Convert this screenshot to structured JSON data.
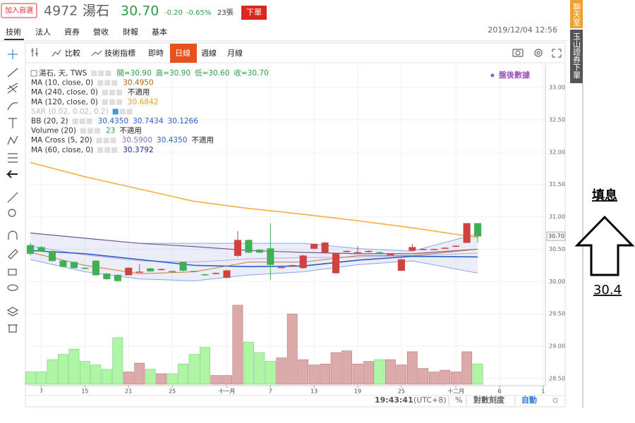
{
  "watch_button": "加入自選",
  "code": "4972",
  "name": "湯石",
  "price": "30.70",
  "change": "-0.20",
  "change_pct": "-0.65%",
  "volume": "23張",
  "order_button": "下單",
  "nav": [
    "技術",
    "法人",
    "資券",
    "營收",
    "財報",
    "基本"
  ],
  "datetime": "2019/12/04 12:56",
  "toolbar": [
    "比較",
    "技術指標",
    "即時",
    "日線",
    "週線",
    "月線"
  ],
  "legend": [
    {
      "name": "湯石, 天, TWS",
      "values": [
        "開=30.90",
        "高=30.90",
        "低=30.60",
        "收=30.70"
      ],
      "colors": [
        "#2e9e45",
        "#2e9e45",
        "#2e9e45",
        "#2e9e45"
      ]
    },
    {
      "name": "MA (10, close, 0)",
      "values": [
        "30.4950"
      ],
      "colors": [
        "#b5651d"
      ]
    },
    {
      "name": "MA (240, close, 0)",
      "values": [
        "不適用"
      ],
      "colors": [
        "#222222"
      ]
    },
    {
      "name": "MA (120, close, 0)",
      "values": [
        "30.6842"
      ],
      "colors": [
        "#e8a317"
      ]
    },
    {
      "name": "SAR (0.02, 0.02, 0.2)",
      "values": [],
      "colors": [],
      "faded": true
    },
    {
      "name": "BB (20, 2)",
      "values": [
        "30.4350",
        "30.7434",
        "30.1266"
      ],
      "colors": [
        "#2a62c9",
        "#2a62c9",
        "#2a62c9"
      ]
    },
    {
      "name": "Volume (20)",
      "values": [
        "23",
        "不適用"
      ],
      "colors": [
        "#2e9e45",
        "#222222"
      ]
    },
    {
      "name": "MA Cross (5, 20)",
      "values": [
        "30.5900",
        "30.4350",
        "不適用"
      ],
      "colors": [
        "#8a6fbf",
        "#2a62c9",
        "#222222"
      ]
    },
    {
      "name": "MA (60, close, 0)",
      "values": [
        "30.3792"
      ],
      "colors": [
        "#1a2f8a"
      ]
    }
  ],
  "after_hours": "盤後數據",
  "status": {
    "time": "19:43:41",
    "tz": "(UTC+8)",
    "pct": "%",
    "log": "對數刻度",
    "auto": "自動"
  },
  "sidebar": [
    "聊天室",
    "玉山證券下單"
  ],
  "annotation": {
    "label": "填息",
    "value": "30.4"
  },
  "chart_data": {
    "type": "candlestick",
    "grid": true,
    "up_color": "#d0423c",
    "down_color": "#3fae55",
    "volume_up_color": "#dcaaaa",
    "volume_down_color": "#aef5a4",
    "xlim": [
      -0.2,
      47.2
    ],
    "xticks": [
      {
        "value": 1,
        "label": "7"
      },
      {
        "value": 5,
        "label": "15"
      },
      {
        "value": 9,
        "label": "21"
      },
      {
        "value": 13,
        "label": "25"
      },
      {
        "value": 18,
        "label": "十一月"
      },
      {
        "value": 22,
        "label": "7"
      },
      {
        "value": 26,
        "label": "13"
      },
      {
        "value": 30,
        "label": "19"
      },
      {
        "value": 34,
        "label": "25"
      },
      {
        "value": 39,
        "label": "十二月"
      },
      {
        "value": 43,
        "label": "6"
      },
      {
        "value": 47,
        "label": "1"
      }
    ],
    "ylim": [
      28.39,
      33.35
    ],
    "yticks": [
      {
        "value": 33,
        "label": "33.00"
      },
      {
        "value": 32.5,
        "label": "32.50"
      },
      {
        "value": 32,
        "label": "32.00"
      },
      {
        "value": 31.5,
        "label": "31.50"
      },
      {
        "value": 31,
        "label": "31.00"
      },
      {
        "value": 30.5,
        "label": "30.50"
      },
      {
        "value": 30,
        "label": "30.00"
      },
      {
        "value": 29.5,
        "label": "29.50"
      },
      {
        "value": 29,
        "label": "29.00"
      },
      {
        "value": 28.5,
        "label": "28.50"
      }
    ],
    "last_label": "30.70",
    "last_value": 30.7,
    "vlim": [
      0,
      130
    ],
    "open": [
      30.56,
      30.53,
      30.47,
      30.32,
      30.3,
      30.21,
      30.32,
      30.12,
      30.1,
      30.1,
      30.14,
      30.2,
      30.18,
      30.16,
      30.3,
      30.16,
      30.11,
      30.12,
      30.06,
      30.4,
      30.64,
      30.49,
      30.51,
      30.22,
      30.24,
      30.21,
      30.51,
      30.45,
      30.13,
      30.46,
      30.45,
      30.46,
      30.45,
      30.42,
      30.17,
      30.48,
      30.5,
      30.5,
      30.52,
      30.55,
      30.6,
      30.9
    ],
    "high": [
      30.6,
      30.55,
      30.48,
      30.33,
      30.31,
      30.22,
      30.33,
      30.13,
      30.11,
      30.22,
      30.27,
      30.21,
      30.2,
      30.17,
      30.31,
      30.17,
      30.12,
      30.14,
      30.18,
      30.78,
      30.65,
      30.5,
      30.9,
      30.23,
      30.26,
      30.41,
      30.59,
      30.61,
      30.44,
      30.48,
      30.55,
      30.48,
      30.46,
      30.43,
      30.35,
      30.58,
      30.51,
      30.51,
      30.53,
      30.56,
      30.9,
      30.9
    ],
    "low": [
      30.4,
      30.46,
      30.31,
      30.22,
      30.2,
      30.19,
      30.09,
      30.03,
      30.0,
      30.1,
      30.14,
      30.15,
      30.17,
      30.14,
      30.16,
      30.14,
      30.09,
      30.11,
      30.05,
      30.38,
      30.44,
      30.44,
      30.02,
      30.21,
      30.23,
      30.2,
      30.5,
      30.44,
      30.12,
      30.45,
      30.44,
      30.45,
      30.43,
      30.41,
      30.16,
      30.47,
      30.49,
      30.49,
      30.51,
      30.54,
      30.6,
      30.6
    ],
    "close": [
      30.43,
      30.47,
      30.32,
      30.23,
      30.21,
      30.2,
      30.1,
      30.04,
      30.01,
      30.21,
      30.15,
      30.16,
      30.19,
      30.15,
      30.17,
      30.15,
      30.1,
      30.13,
      30.17,
      30.64,
      30.45,
      30.45,
      30.26,
      30.22,
      30.25,
      30.4,
      30.58,
      30.6,
      30.43,
      30.47,
      30.45,
      30.47,
      30.44,
      30.42,
      30.34,
      30.53,
      30.5,
      30.5,
      30.52,
      30.55,
      30.9,
      30.7
    ],
    "volume": [
      14,
      14,
      28,
      34,
      40,
      26,
      22,
      17,
      53,
      14,
      24,
      17,
      12,
      12,
      23,
      34,
      42,
      10,
      10,
      90,
      48,
      36,
      26,
      30,
      80,
      28,
      22,
      23,
      36,
      38,
      23,
      26,
      28,
      28,
      22,
      37,
      18,
      14,
      16,
      14,
      37,
      23
    ],
    "lines": [
      {
        "color": "#f5b041",
        "width": 1.6,
        "x": [
          0,
          5,
          10,
          15,
          20,
          25,
          30,
          35,
          41
        ],
        "values": [
          31.84,
          31.62,
          31.43,
          31.24,
          31.13,
          31.04,
          30.94,
          30.83,
          30.68
        ]
      },
      {
        "color": "#8aa6e0",
        "width": 1,
        "x": [
          0,
          5,
          10,
          15,
          20,
          25,
          30,
          35,
          41
        ],
        "values": [
          30.75,
          30.67,
          30.59,
          30.59,
          30.59,
          30.59,
          30.51,
          30.47,
          30.74
        ]
      },
      {
        "color": "#8aa6e0",
        "width": 1,
        "x": [
          0,
          5,
          10,
          15,
          20,
          25,
          30,
          35,
          41
        ],
        "values": [
          30.34,
          30.15,
          30.04,
          30.01,
          30.1,
          30.15,
          30.26,
          30.32,
          30.13
        ]
      },
      {
        "color": "#b7a7de",
        "width": 1,
        "x": [
          0,
          5,
          10,
          15,
          20,
          25,
          30,
          35,
          41
        ],
        "values": [
          30.55,
          30.41,
          30.32,
          30.3,
          30.35,
          30.37,
          30.38,
          30.4,
          30.44
        ]
      },
      {
        "color": "#7a5a8c",
        "width": 1.2,
        "x": [
          0,
          5,
          10,
          15,
          20,
          25,
          30,
          35,
          41
        ],
        "values": [
          30.75,
          30.67,
          30.59,
          30.54,
          30.48,
          30.45,
          30.43,
          30.43,
          30.5
        ]
      },
      {
        "color": "#2a5ec4",
        "width": 1.6,
        "x": [
          0,
          5,
          10,
          15,
          20,
          25,
          30,
          35,
          41
        ],
        "values": [
          30.48,
          30.43,
          30.34,
          30.25,
          30.23,
          30.24,
          30.33,
          30.39,
          30.38
        ]
      },
      {
        "color": "#c87a3a",
        "width": 1,
        "x": [
          0,
          5,
          10,
          15,
          20,
          25,
          30,
          35,
          41
        ],
        "values": [
          30.45,
          30.25,
          30.12,
          30.15,
          30.3,
          30.3,
          30.4,
          30.4,
          30.5
        ]
      }
    ]
  }
}
